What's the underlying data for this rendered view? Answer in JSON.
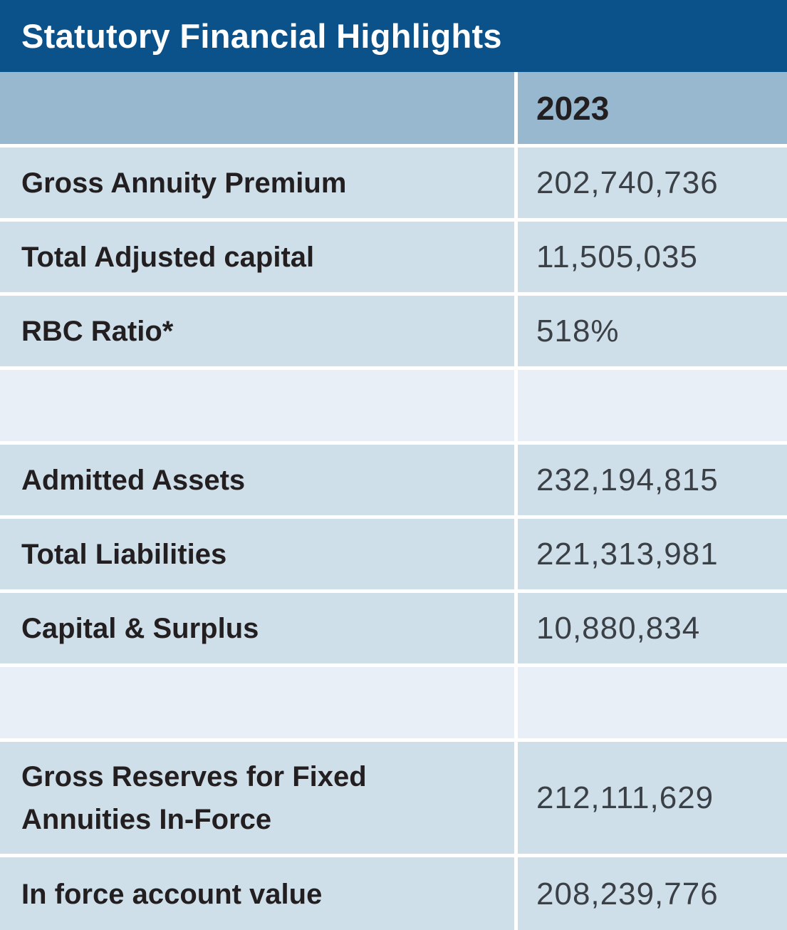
{
  "header": {
    "title": "Statutory Financial Highlights",
    "year": "2023"
  },
  "table": {
    "rows": [
      {
        "label": "Gross Annuity Premium",
        "value": "202,740,736"
      },
      {
        "label": "Total Adjusted capital",
        "value": "11,505,035"
      },
      {
        "label": "RBC Ratio*",
        "value": "518%"
      },
      {
        "label": "Admitted Assets",
        "value": "232,194,815"
      },
      {
        "label": "Total Liabilities",
        "value": "221,313,981"
      },
      {
        "label": "Capital & Surplus",
        "value": "10,880,834"
      },
      {
        "label": "Gross Reserves for Fixed Annuities In-Force",
        "value": "212,111,629"
      },
      {
        "label": "In force account value",
        "value": "208,239,776"
      }
    ]
  },
  "colors": {
    "title_bar": "#0b528a",
    "title_text": "#ffffff",
    "year_header_row": "#97b8ce",
    "data_row": "#cfdfea",
    "spacer_row": "#e8eff6",
    "label_text": "#231f20",
    "value_text": "#3a4046",
    "divider": "#ffffff"
  }
}
